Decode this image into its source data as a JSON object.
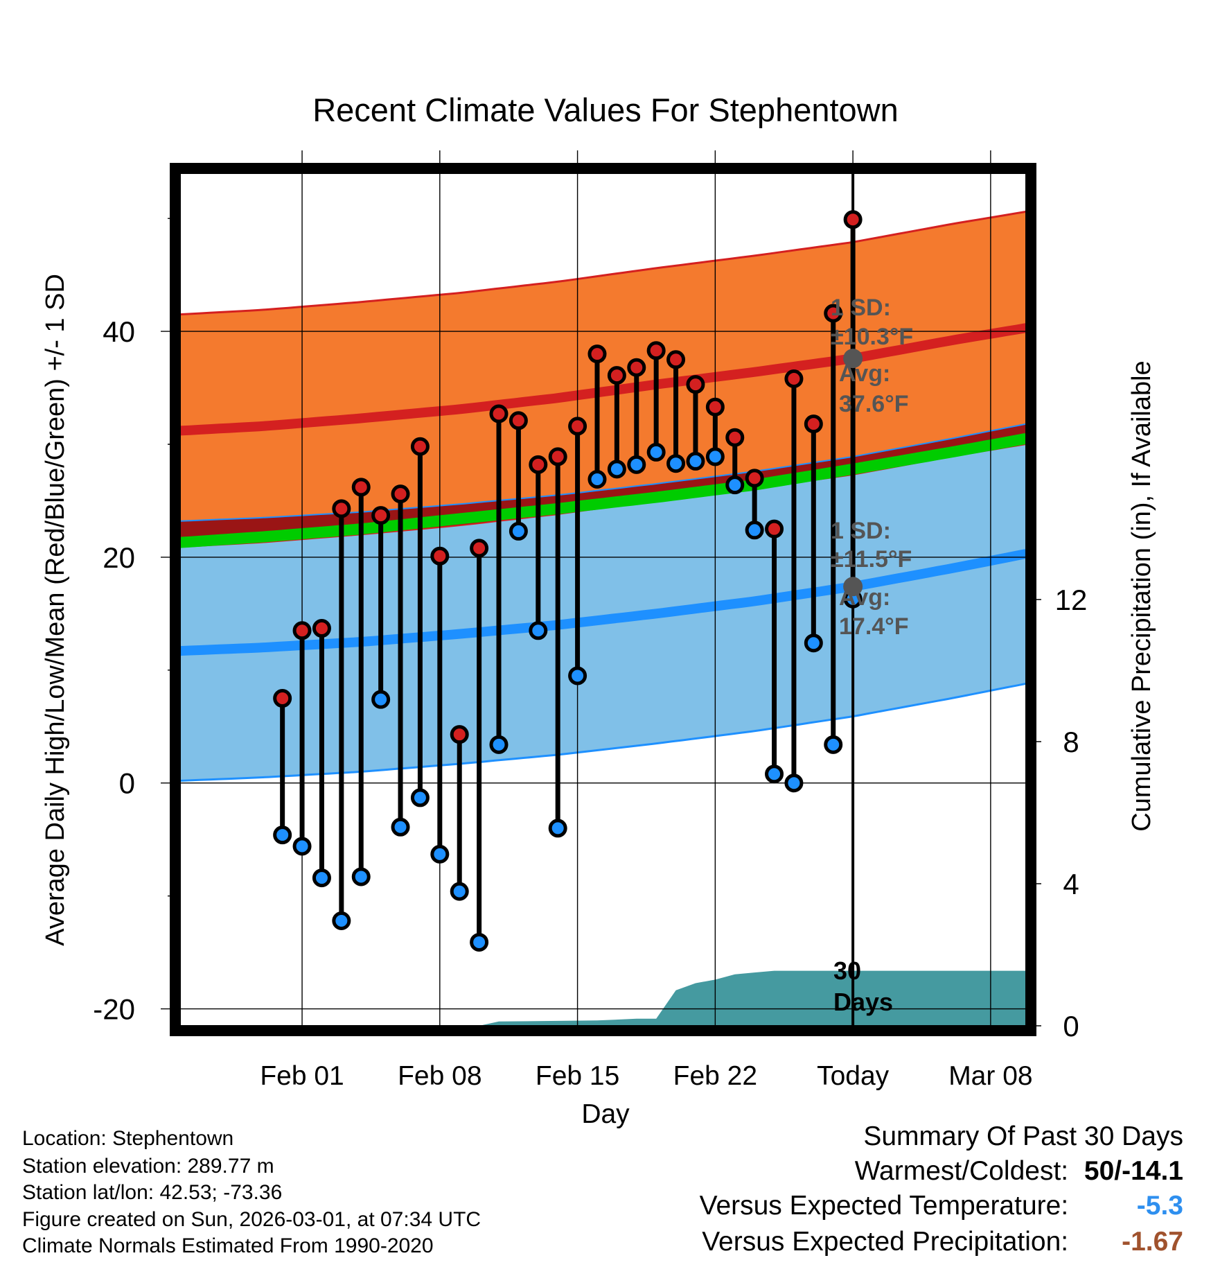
{
  "chart_data": {
    "type": "line",
    "title": "Recent Climate Values For Stephentown",
    "xlabel": "Day",
    "ylabel": "Average Daily High/Low/Mean (Red/Blue/Green) +/- 1 SD",
    "y2label": "Cumulative Precipitation (in), If Available",
    "x_range_days": [
      -34.2,
      8.8
    ],
    "ylim": [
      -21.5,
      54
    ],
    "y2lim": [
      0,
      24
    ],
    "x_ticks": [
      {
        "day": -28,
        "label": "Feb 01"
      },
      {
        "day": -21,
        "label": "Feb 08"
      },
      {
        "day": -14,
        "label": "Feb 15"
      },
      {
        "day": -7,
        "label": "Feb 22"
      },
      {
        "day": 0,
        "label": "Today"
      },
      {
        "day": 7,
        "label": "Mar 08"
      }
    ],
    "y_ticks": [
      -20,
      0,
      20,
      40
    ],
    "y_minor_ticks": [
      -10,
      10,
      30,
      50
    ],
    "y2_ticks": [
      0,
      4,
      8,
      12
    ],
    "normals": {
      "days": [
        -34.2,
        -30,
        -25,
        -20,
        -15,
        -10,
        -5,
        0,
        5,
        8.8
      ],
      "high_avg": [
        31.2,
        31.6,
        32.3,
        33.1,
        34.1,
        35.3,
        36.4,
        37.6,
        39.2,
        40.3
      ],
      "low_avg": [
        11.7,
        12.0,
        12.5,
        13.2,
        14.0,
        15.0,
        16.1,
        17.4,
        19.0,
        20.3
      ],
      "mean_avg": [
        21.3,
        21.8,
        22.5,
        23.4,
        24.3,
        25.3,
        26.4,
        27.8,
        29.3,
        30.5
      ],
      "high_sd": 10.3,
      "low_sd": 11.5
    },
    "series": [
      {
        "name": "High",
        "color": "#d02020",
        "values": [
          7.5,
          13.5,
          13.7,
          24.3,
          26.2,
          23.7,
          25.6,
          29.8,
          20.1,
          4.3,
          20.8,
          32.7,
          32.1,
          28.2,
          28.9,
          31.6,
          38.0,
          36.1,
          36.8,
          38.3,
          37.5,
          35.3,
          33.3,
          30.6,
          27.0,
          22.5,
          35.8,
          31.8,
          41.6,
          49.9
        ]
      },
      {
        "name": "Low",
        "color": "#1e90ff",
        "values": [
          -4.6,
          -5.6,
          -8.4,
          -12.2,
          -8.3,
          7.4,
          -3.9,
          -1.3,
          -6.3,
          -9.6,
          -14.1,
          3.4,
          22.3,
          13.5,
          -4.0,
          9.5,
          26.9,
          27.8,
          28.2,
          29.3,
          28.3,
          28.5,
          28.9,
          26.4,
          22.4,
          0.8,
          0.0,
          12.4,
          3.4,
          16.3
        ]
      }
    ],
    "days": [
      -29,
      -28,
      -27,
      -26,
      -25,
      -24,
      -23,
      -22,
      -21,
      -20,
      -19,
      -18,
      -17,
      -16,
      -15,
      -14,
      -13,
      -12,
      -11,
      -10,
      -9,
      -8,
      -7,
      -6,
      -5,
      -4,
      -3,
      -2,
      -1,
      0
    ],
    "precip_cumulative": {
      "days": [
        -34.2,
        -19,
        -18,
        -13,
        -11,
        -10,
        -9,
        -8,
        -7,
        -6,
        -5,
        -4,
        -3,
        8.8
      ],
      "values": [
        0,
        0,
        0.12,
        0.15,
        0.2,
        0.2,
        1.0,
        1.2,
        1.3,
        1.45,
        1.5,
        1.55,
        1.55,
        1.55
      ]
    },
    "annotations": {
      "high_sd_text": [
        "1 SD:",
        "±10.3°F"
      ],
      "high_avg_text": [
        "Avg:",
        "37.6°F"
      ],
      "low_sd_text": [
        "1 SD:",
        "±11.5°F"
      ],
      "low_avg_text": [
        "Avg:",
        "17.4°F"
      ],
      "window_label": [
        "30",
        "Days"
      ]
    },
    "colors": {
      "high_band": "#f47a2e",
      "high_line": "#d42020",
      "low_band": "#80c0e8",
      "low_line": "#1e90ff",
      "mean_line": "#00cc00",
      "overlap": "#9a1515",
      "precip": "#459aa0",
      "dot_border": "#000000",
      "annotation_text": "#555555"
    }
  },
  "info": {
    "location": "Location: Stephentown",
    "elevation": "Station elevation: 289.77 m",
    "latlon": "Station lat/lon: 42.53; -73.36",
    "created": "Figure created on Sun, 2026-03-01, at 07:34 UTC",
    "normals": "Climate Normals Estimated From 1990-2020"
  },
  "summary": {
    "title": "Summary Of Past 30 Days",
    "warmest_label": "Warmest/Coldest:",
    "warmest_value": "50/-14.1",
    "temp_label": "Versus Expected Temperature:",
    "temp_value": "-5.3",
    "temp_color": "#2e8fef",
    "precip_label": "Versus Expected Precipitation:",
    "precip_value": "-1.67",
    "precip_color": "#a0522d"
  }
}
